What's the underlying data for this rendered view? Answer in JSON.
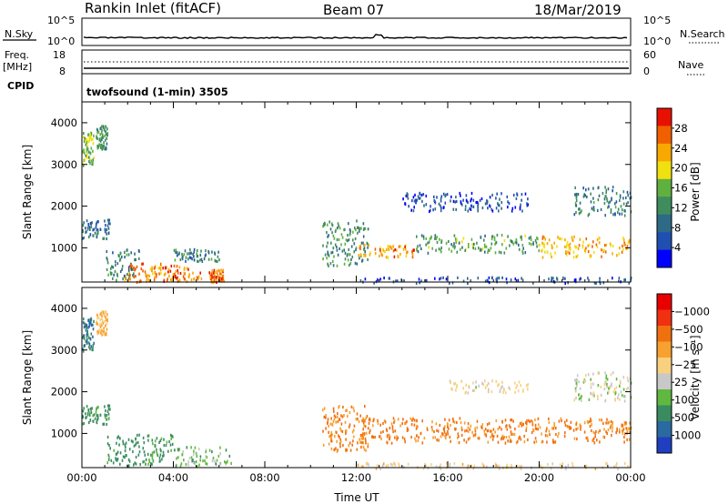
{
  "header": {
    "station": "Rankin Inlet (fitACF)",
    "beam": "Beam 07",
    "date": "18/Mar/2019"
  },
  "nsky_panel": {
    "left_label": "N.Sky",
    "right_label": "N.Search",
    "left_ticks": [
      "10^5",
      "10^0"
    ],
    "right_ticks": [
      "10^5",
      "10^0"
    ]
  },
  "freq_panel": {
    "left_label_1": "Freq.",
    "left_label_2": "[MHz]",
    "right_label": "Nave",
    "left_ticks": [
      "18",
      "8"
    ],
    "right_ticks": [
      "60",
      "0"
    ]
  },
  "cpid_panel": {
    "label": "CPID",
    "text": "twofsound (1-min) 3505"
  },
  "chart_data": [
    {
      "type": "heatmap",
      "parameter": "power",
      "ylabel": "Slant Range [km]",
      "xlabel": "",
      "xlim": [
        0,
        24
      ],
      "ylim": [
        180,
        4500
      ],
      "x_tick_values": [
        0,
        4,
        8,
        12,
        16,
        20,
        24
      ],
      "y_tick_values": [
        1000,
        2000,
        3000,
        4000
      ],
      "y_tick_labels": [
        "1000",
        "2000",
        "3000",
        "4000"
      ],
      "colorbar_label": "Power [dB]",
      "colorbar_ticks": [
        "4",
        "8",
        "12",
        "16",
        "20",
        "24",
        "28"
      ],
      "colorbar_colors": [
        "#0000ff",
        "#1f4fb0",
        "#2e6a86",
        "#3f8d5e",
        "#60b040",
        "#f0e010",
        "#f8a800",
        "#f06000",
        "#e81000"
      ],
      "echo_regions": [
        {
          "t": [
            0.0,
            1.2
          ],
          "r": [
            1250,
            1700
          ],
          "v": 8
        },
        {
          "t": [
            0.6,
            1.1
          ],
          "r": [
            3400,
            3950
          ],
          "v": 12
        },
        {
          "t": [
            0.0,
            0.5
          ],
          "r": [
            3000,
            3800
          ],
          "v": 16
        },
        {
          "t": [
            1.0,
            2.5
          ],
          "r": [
            250,
            1000
          ],
          "v": 10
        },
        {
          "t": [
            1.8,
            3.5
          ],
          "r": [
            200,
            650
          ],
          "v": 24
        },
        {
          "t": [
            3.5,
            5.2
          ],
          "r": [
            200,
            600
          ],
          "v": 26
        },
        {
          "t": [
            5.5,
            6.2
          ],
          "r": [
            200,
            500
          ],
          "v": 25
        },
        {
          "t": [
            4.0,
            6.0
          ],
          "r": [
            700,
            1000
          ],
          "v": 10
        },
        {
          "t": [
            10.5,
            12.5
          ],
          "r": [
            600,
            1700
          ],
          "v": 12
        },
        {
          "t": [
            12.0,
            14.5
          ],
          "r": [
            800,
            1100
          ],
          "v": 24
        },
        {
          "t": [
            14.5,
            20.0
          ],
          "r": [
            900,
            1350
          ],
          "v": 14
        },
        {
          "t": [
            20.0,
            24.0
          ],
          "r": [
            800,
            1300
          ],
          "v": 22
        },
        {
          "t": [
            21.5,
            24.0
          ],
          "r": [
            1800,
            2500
          ],
          "v": 10
        },
        {
          "t": [
            14.0,
            19.5
          ],
          "r": [
            1900,
            2350
          ],
          "v": 6
        },
        {
          "t": [
            12.0,
            24.0
          ],
          "r": [
            180,
            320
          ],
          "v": 6
        }
      ]
    },
    {
      "type": "heatmap",
      "parameter": "velocity",
      "ylabel": "Slant Range [km]",
      "xlabel": "Time UT",
      "xlim": [
        0,
        24
      ],
      "ylim": [
        180,
        4500
      ],
      "x_tick_values": [
        0,
        4,
        8,
        12,
        16,
        20,
        24
      ],
      "x_tick_labels": [
        "00:00",
        "04:00",
        "08:00",
        "12:00",
        "16:00",
        "20:00",
        "00:00"
      ],
      "y_tick_values": [
        1000,
        2000,
        3000,
        4000
      ],
      "y_tick_labels": [
        "1000",
        "2000",
        "3000",
        "4000"
      ],
      "colorbar_label": "Velocity [m s⁻¹]",
      "colorbar_ticks": [
        "1000",
        "500",
        "100",
        "25",
        "−25",
        "−100",
        "−500",
        "−1000"
      ],
      "colorbar_colors": [
        "#1f3fc0",
        "#2a6aa0",
        "#3a8c60",
        "#60b840",
        "#c8c8c8",
        "#f8d080",
        "#f8a030",
        "#f07010",
        "#f03010",
        "#e80000"
      ],
      "echo_regions": [
        {
          "t": [
            0.0,
            1.2
          ],
          "r": [
            1250,
            1700
          ],
          "v": 150
        },
        {
          "t": [
            0.6,
            1.1
          ],
          "r": [
            3400,
            3950
          ],
          "v": -120
        },
        {
          "t": [
            0.0,
            0.5
          ],
          "r": [
            3000,
            3800
          ],
          "v": 300
        },
        {
          "t": [
            1.0,
            4.0
          ],
          "r": [
            250,
            1000
          ],
          "v": 150
        },
        {
          "t": [
            4.0,
            6.5
          ],
          "r": [
            200,
            700
          ],
          "v": 60
        },
        {
          "t": [
            10.5,
            12.5
          ],
          "r": [
            600,
            1700
          ],
          "v": -300
        },
        {
          "t": [
            12.0,
            24.0
          ],
          "r": [
            800,
            1400
          ],
          "v": -300
        },
        {
          "t": [
            21.5,
            24.0
          ],
          "r": [
            1800,
            2500
          ],
          "v": 0
        },
        {
          "t": [
            16.0,
            19.5
          ],
          "r": [
            2000,
            2300
          ],
          "v": -30
        },
        {
          "t": [
            12.0,
            24.0
          ],
          "r": [
            180,
            320
          ],
          "v": -50
        }
      ]
    }
  ]
}
